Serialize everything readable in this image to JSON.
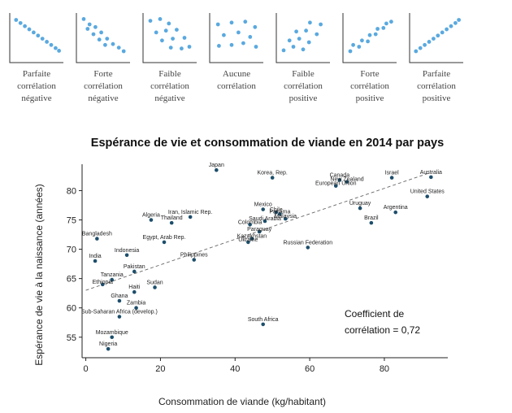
{
  "legend_panels": [
    {
      "caption": [
        "Parfaite",
        "corrélation",
        "négative"
      ],
      "points": [
        [
          0.08,
          0.9
        ],
        [
          0.17,
          0.83
        ],
        [
          0.26,
          0.76
        ],
        [
          0.35,
          0.69
        ],
        [
          0.44,
          0.62
        ],
        [
          0.53,
          0.55
        ],
        [
          0.62,
          0.48
        ],
        [
          0.71,
          0.41
        ],
        [
          0.8,
          0.34
        ],
        [
          0.89,
          0.27
        ],
        [
          0.96,
          0.21
        ]
      ]
    },
    {
      "caption": [
        "Forte",
        "corrélation",
        "négative"
      ],
      "points": [
        [
          0.1,
          0.92
        ],
        [
          0.22,
          0.8
        ],
        [
          0.18,
          0.7
        ],
        [
          0.34,
          0.74
        ],
        [
          0.3,
          0.58
        ],
        [
          0.46,
          0.62
        ],
        [
          0.42,
          0.46
        ],
        [
          0.58,
          0.48
        ],
        [
          0.54,
          0.34
        ],
        [
          0.7,
          0.36
        ],
        [
          0.82,
          0.28
        ],
        [
          0.92,
          0.2
        ]
      ]
    },
    {
      "caption": [
        "Faible",
        "corrélation",
        "négative"
      ],
      "points": [
        [
          0.1,
          0.88
        ],
        [
          0.3,
          0.92
        ],
        [
          0.48,
          0.82
        ],
        [
          0.22,
          0.62
        ],
        [
          0.42,
          0.66
        ],
        [
          0.64,
          0.68
        ],
        [
          0.34,
          0.44
        ],
        [
          0.56,
          0.48
        ],
        [
          0.8,
          0.5
        ],
        [
          0.52,
          0.28
        ],
        [
          0.74,
          0.26
        ],
        [
          0.9,
          0.3
        ]
      ]
    },
    {
      "caption": [
        "Aucune",
        "corrélation"
      ],
      "points": [
        [
          0.12,
          0.8
        ],
        [
          0.4,
          0.84
        ],
        [
          0.68,
          0.86
        ],
        [
          0.88,
          0.74
        ],
        [
          0.24,
          0.56
        ],
        [
          0.54,
          0.62
        ],
        [
          0.78,
          0.52
        ],
        [
          0.14,
          0.32
        ],
        [
          0.4,
          0.34
        ],
        [
          0.64,
          0.38
        ],
        [
          0.9,
          0.3
        ]
      ]
    },
    {
      "caption": [
        "Faible",
        "corrélation",
        "positive"
      ],
      "points": [
        [
          0.1,
          0.22
        ],
        [
          0.3,
          0.3
        ],
        [
          0.5,
          0.24
        ],
        [
          0.22,
          0.44
        ],
        [
          0.42,
          0.48
        ],
        [
          0.62,
          0.4
        ],
        [
          0.36,
          0.64
        ],
        [
          0.56,
          0.66
        ],
        [
          0.78,
          0.58
        ],
        [
          0.64,
          0.84
        ],
        [
          0.86,
          0.8
        ]
      ]
    },
    {
      "caption": [
        "Forte",
        "corrélation",
        "positive"
      ],
      "points": [
        [
          0.1,
          0.2
        ],
        [
          0.16,
          0.34
        ],
        [
          0.28,
          0.3
        ],
        [
          0.34,
          0.44
        ],
        [
          0.46,
          0.42
        ],
        [
          0.5,
          0.56
        ],
        [
          0.62,
          0.58
        ],
        [
          0.66,
          0.7
        ],
        [
          0.78,
          0.72
        ],
        [
          0.84,
          0.82
        ],
        [
          0.94,
          0.86
        ]
      ]
    },
    {
      "caption": [
        "Parfaite",
        "corrélation",
        "positive"
      ],
      "points": [
        [
          0.08,
          0.2
        ],
        [
          0.17,
          0.27
        ],
        [
          0.26,
          0.34
        ],
        [
          0.35,
          0.41
        ],
        [
          0.44,
          0.48
        ],
        [
          0.53,
          0.55
        ],
        [
          0.62,
          0.62
        ],
        [
          0.71,
          0.69
        ],
        [
          0.8,
          0.76
        ],
        [
          0.89,
          0.83
        ],
        [
          0.96,
          0.9
        ]
      ]
    }
  ],
  "colors": {
    "legend_dot": "#5aa9df",
    "legend_axis": "#333333",
    "point": "#1d4e6b",
    "trend": "#666666"
  },
  "chart_data": {
    "type": "scatter",
    "title": "Espérance de vie et consommation de viande en 2014 par pays",
    "xlabel": "Consommation de viande (kg/habitant)",
    "ylabel": "Espérance de vie à la naissance (années)",
    "xlim": [
      -1,
      97
    ],
    "ylim": [
      51.5,
      84.5
    ],
    "xticks": [
      0,
      20,
      40,
      60,
      80
    ],
    "yticks": [
      55,
      60,
      65,
      70,
      75,
      80
    ],
    "trendline": {
      "x": [
        0,
        92
      ],
      "y": [
        63.0,
        83.0
      ]
    },
    "annotation": [
      "Coefficient de",
      "corrélation = 0,72"
    ],
    "points": [
      {
        "name": "Japan",
        "x": 35,
        "y": 83.5,
        "dy": -4
      },
      {
        "name": "Korea, Rep.",
        "x": 50,
        "y": 82.2,
        "dy": -4
      },
      {
        "name": "Israel",
        "x": 82,
        "y": 82.2,
        "dy": -4
      },
      {
        "name": "Australia",
        "x": 92.5,
        "y": 82.3,
        "dy": -4
      },
      {
        "name": "Canada",
        "x": 68,
        "y": 81.8,
        "dy": -4
      },
      {
        "name": "New Zealand",
        "x": 70,
        "y": 81.5,
        "dy": -1
      },
      {
        "name": "European Union",
        "x": 67,
        "y": 80.8,
        "dy": -1
      },
      {
        "name": "United States",
        "x": 91.5,
        "y": 79.0,
        "dy": -4
      },
      {
        "name": "Mexico",
        "x": 47.5,
        "y": 76.8,
        "dy": -4
      },
      {
        "name": "Chile",
        "x": 51,
        "y": 76.3,
        "dy": -1
      },
      {
        "name": "Panama",
        "x": 52,
        "y": 76.0,
        "dy": -1
      },
      {
        "name": "Malaysia",
        "x": 53.5,
        "y": 75.2,
        "dy": -1
      },
      {
        "name": "Saudi Arabia",
        "x": 48,
        "y": 74.8,
        "dy": -1
      },
      {
        "name": "Colombia",
        "x": 44,
        "y": 74.2,
        "dy": -1
      },
      {
        "name": "Paraguay",
        "x": 46.5,
        "y": 73.0,
        "dy": -1
      },
      {
        "name": "Kazakhstan",
        "x": 44.5,
        "y": 71.8,
        "dy": -1
      },
      {
        "name": "Ukraine",
        "x": 43.5,
        "y": 71.2,
        "dy": -1
      },
      {
        "name": "Uruguay",
        "x": 73.5,
        "y": 77.0,
        "dy": -4
      },
      {
        "name": "Argentina",
        "x": 83,
        "y": 76.3,
        "dy": -4
      },
      {
        "name": "Brazil",
        "x": 76.5,
        "y": 74.5,
        "dy": -4
      },
      {
        "name": "Iran, Islamic Rep.",
        "x": 28,
        "y": 75.5,
        "dy": -4
      },
      {
        "name": "Algeria",
        "x": 17.5,
        "y": 75.0,
        "dy": -4
      },
      {
        "name": "Thailand",
        "x": 23,
        "y": 74.5,
        "dy": -4
      },
      {
        "name": "Egypt, Arab Rep.",
        "x": 21,
        "y": 71.2,
        "dy": -4
      },
      {
        "name": "Russian Federation",
        "x": 59.5,
        "y": 70.3,
        "dy": -4
      },
      {
        "name": "Bangladesh",
        "x": 3,
        "y": 71.8,
        "dy": -4
      },
      {
        "name": "Indonesia",
        "x": 11,
        "y": 69.0,
        "dy": -4
      },
      {
        "name": "India",
        "x": 2.5,
        "y": 68.0,
        "dy": -4
      },
      {
        "name": "Philippines",
        "x": 29,
        "y": 68.2,
        "dy": -4
      },
      {
        "name": "Pakistan",
        "x": 13,
        "y": 66.2,
        "dy": -4
      },
      {
        "name": "Tanzania",
        "x": 7,
        "y": 64.8,
        "dy": -4
      },
      {
        "name": "Ethiopia",
        "x": 4.5,
        "y": 64.0,
        "dy": -1
      },
      {
        "name": "Sudan",
        "x": 18.5,
        "y": 63.5,
        "dy": -4
      },
      {
        "name": "Haiti",
        "x": 13,
        "y": 62.7,
        "dy": -4
      },
      {
        "name": "Ghana",
        "x": 9,
        "y": 61.2,
        "dy": -4
      },
      {
        "name": "Zambia",
        "x": 13.5,
        "y": 60.0,
        "dy": -4
      },
      {
        "name": "Sub-Saharan Africa (develop.)",
        "x": 9,
        "y": 58.5,
        "dy": -4
      },
      {
        "name": "South Africa",
        "x": 47.5,
        "y": 57.2,
        "dy": -4
      },
      {
        "name": "Mozambique",
        "x": 7,
        "y": 55.0,
        "dy": -4
      },
      {
        "name": "Nigeria",
        "x": 6,
        "y": 53.0,
        "dy": -4
      }
    ]
  }
}
